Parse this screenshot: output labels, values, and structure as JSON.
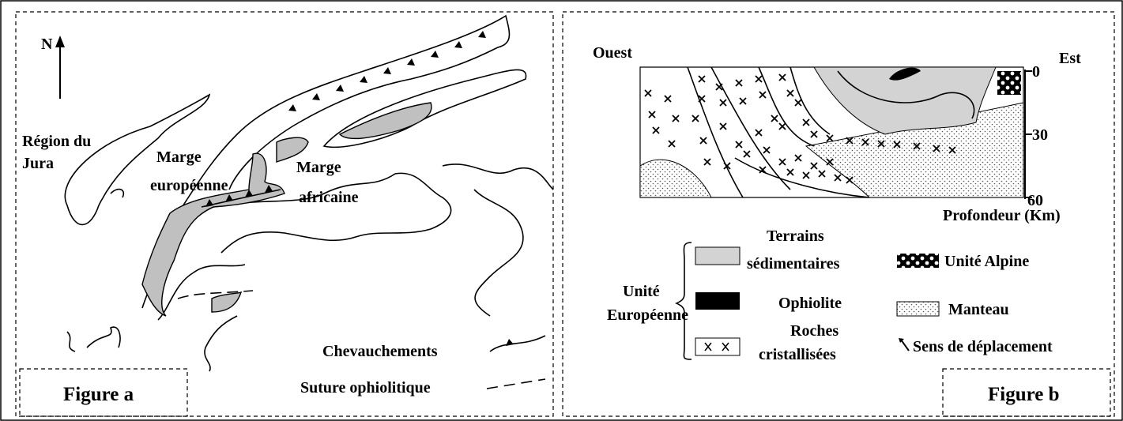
{
  "figure_a": {
    "north": "N",
    "regions": [
      {
        "lines": [
          "Région du",
          "Jura"
        ]
      },
      {
        "lines": [
          "Marge",
          "européenne"
        ]
      },
      {
        "lines": [
          "Marge",
          "africaine"
        ]
      }
    ],
    "legend": [
      "Chevauchements",
      "Suture ophiolitique"
    ],
    "caption": "Figure a"
  },
  "figure_b": {
    "west": "Ouest",
    "east": "Est",
    "depth_ticks": [
      0,
      30,
      60
    ],
    "depth_label": "Profondeur  (Km)",
    "group_label": [
      "Unité",
      "Européenne"
    ],
    "legend": [
      {
        "lines": [
          "Terrains",
          "sédimentaires"
        ]
      },
      {
        "lines": [
          "Ophiolite"
        ]
      },
      {
        "lines": [
          "Roches",
          "cristallisées"
        ]
      },
      {
        "lines": [
          "Unité Alpine"
        ]
      },
      {
        "lines": [
          "Manteau"
        ]
      },
      {
        "lines": [
          "Sens de déplacement"
        ]
      }
    ],
    "caption": "Figure b"
  }
}
